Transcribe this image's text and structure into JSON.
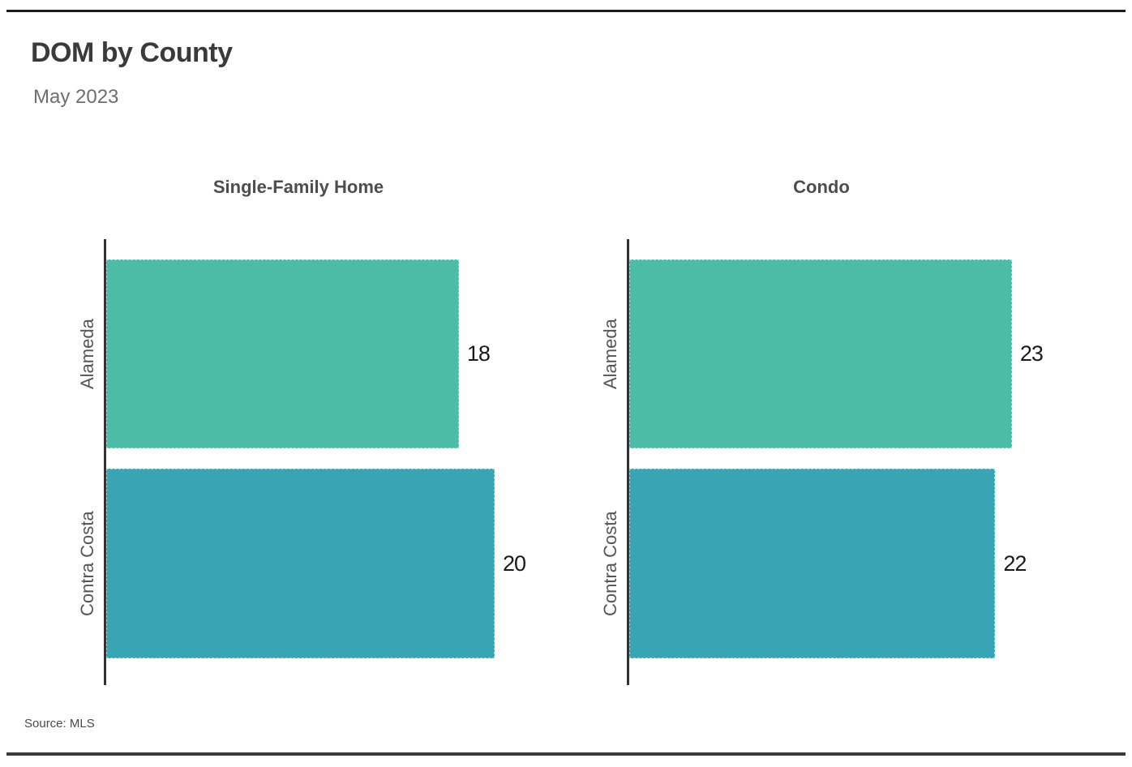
{
  "header": {
    "title": "DOM by County",
    "subtitle": "May 2023"
  },
  "footer": {
    "source": "Source: MLS"
  },
  "colors": {
    "bar_alameda": "#4cbca7",
    "bar_contra_costa": "#39a5b4",
    "axis_line": "#333333",
    "divider": "#1c1c1c"
  },
  "chart_data": {
    "type": "bar",
    "orientation": "horizontal",
    "title": "DOM by County",
    "subtitle": "May 2023",
    "caption": "Source: MLS",
    "grid": false,
    "legend_position": "none",
    "value_labels_shown": true,
    "categories": [
      "Alameda",
      "Contra Costa"
    ],
    "bar_colors": [
      "#4cbca7",
      "#39a5b4"
    ],
    "facets": [
      {
        "title": "Single-Family Home",
        "values": [
          18,
          20
        ],
        "xmin": 0,
        "xmax": 21.4
      },
      {
        "title": "Condo",
        "values": [
          23,
          22
        ],
        "xmin": 0,
        "xmax": 25.2
      }
    ]
  }
}
